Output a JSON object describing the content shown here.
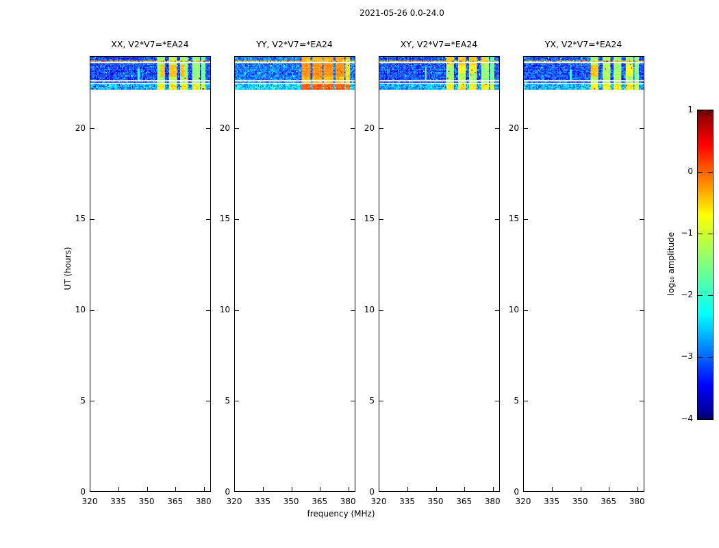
{
  "title": "2021-05-26 0.0-24.0",
  "colorbar": {
    "label": "log₁₀ amplitude",
    "tick_labels": [
      "1",
      "0",
      "−1",
      "−2",
      "−3",
      "−4"
    ],
    "colormap": "jet",
    "gradient_stops": [
      [
        "#00007f",
        0
      ],
      [
        "#0000ff",
        11
      ],
      [
        "#00ffff",
        34
      ],
      [
        "#7fff7f",
        50
      ],
      [
        "#ffff00",
        66
      ],
      [
        "#ff0000",
        89
      ],
      [
        "#7f0000",
        100
      ]
    ]
  },
  "chart_data": {
    "type": "heatmap",
    "title": "2021-05-26 0.0-24.0",
    "xlabel": "frequency (MHz)",
    "ylabel": "UT (hours)",
    "xlim_mhz": [
      320,
      383
    ],
    "ylim_hours": [
      0,
      24
    ],
    "xticks_mhz": [
      320,
      335,
      350,
      365,
      380
    ],
    "yticks_hours": [
      0,
      5,
      10,
      15,
      20
    ],
    "value_units": "log10 amplitude",
    "value_range": [
      -4,
      1
    ],
    "colorbar_ticks": [
      1,
      0,
      -1,
      -2,
      -3,
      -4
    ],
    "colormap": "jet",
    "data_time_range_hours": [
      22.1,
      24.0
    ],
    "scan_speck_row_hour": 23.705,
    "flagged_lines_hours": [
      23.64,
      22.63,
      22.49
    ],
    "bottom_bright_rows_hours": [
      22.1,
      22.42
    ],
    "panels": [
      {
        "polarization": "XX",
        "title": "XX, V2*V7=*EA24",
        "background_level": -3.1,
        "noise_spread": 1.1,
        "band_widen_mhz": 0,
        "bands": [
          {
            "f_mhz": [
              355.5,
              359.5
            ],
            "level": -1.35
          },
          {
            "f_mhz": [
              361.3,
              365.5
            ],
            "level": -1.25
          },
          {
            "f_mhz": [
              367.3,
              371.3
            ],
            "level": -1.35
          },
          {
            "f_mhz": [
              373.5,
              377.5
            ],
            "level": -1.4
          },
          {
            "f_mhz": [
              378.6,
              380.4
            ],
            "level": -1.55
          }
        ],
        "blobs": [
          {
            "f_mhz": [
              357,
              369.5
            ],
            "t_hours": [
              22.85,
              23.5
            ],
            "level": -0.55
          }
        ],
        "streaks": [
          {
            "f_mhz": 345.3,
            "t_hours": [
              22.6,
              23.25
            ],
            "level": -1.9
          }
        ]
      },
      {
        "polarization": "YY",
        "title": "YY, V2*V7=*EA24",
        "background_level": -2.85,
        "noise_spread": 1.0,
        "band_widen_mhz": 0.5,
        "bands": [
          {
            "f_mhz": [
              355.5,
              359.5
            ],
            "level": -0.55
          },
          {
            "f_mhz": [
              361.3,
              365.5
            ],
            "level": -0.5
          },
          {
            "f_mhz": [
              367.3,
              371.3
            ],
            "level": -0.55
          },
          {
            "f_mhz": [
              373.5,
              377.5
            ],
            "level": -0.55
          },
          {
            "f_mhz": [
              378.6,
              380.4
            ],
            "level": -0.7
          }
        ],
        "blobs": [
          {
            "f_mhz": [
              354.5,
              378
            ],
            "t_hours": [
              22.85,
              23.6
            ],
            "level": -0.3
          },
          {
            "f_mhz": [
              354.5,
              382
            ],
            "t_hours": [
              23.78,
              23.96
            ],
            "level": -0.55
          },
          {
            "f_mhz": [
              354.5,
              377
            ],
            "t_hours": [
              22.1,
              22.48
            ],
            "level": -0.65
          }
        ],
        "streaks": []
      },
      {
        "polarization": "XY",
        "title": "XY, V2*V7=*EA24",
        "background_level": -3.1,
        "noise_spread": 1.1,
        "band_widen_mhz": 0,
        "bands": [
          {
            "f_mhz": [
              355.5,
              359.5
            ],
            "level": -1.35
          },
          {
            "f_mhz": [
              361.3,
              365.5
            ],
            "level": -1.25
          },
          {
            "f_mhz": [
              367.3,
              371.3
            ],
            "level": -1.35
          },
          {
            "f_mhz": [
              373.5,
              377.5
            ],
            "level": -1.4
          },
          {
            "f_mhz": [
              378.6,
              380.4
            ],
            "level": -1.6
          }
        ],
        "blobs": [
          {
            "f_mhz": [
              355,
              376
            ],
            "t_hours": [
              23.5,
              23.95
            ],
            "level": -0.6
          },
          {
            "f_mhz": [
              360,
              372
            ],
            "t_hours": [
              23.0,
              23.5
            ],
            "level": -0.85
          }
        ],
        "streaks": [
          {
            "f_mhz": 344.5,
            "t_hours": [
              22.55,
              23.35
            ],
            "level": -1.5
          }
        ]
      },
      {
        "polarization": "YX",
        "title": "YX, V2*V7=*EA24",
        "background_level": -3.05,
        "noise_spread": 1.1,
        "band_widen_mhz": 0,
        "bands": [
          {
            "f_mhz": [
              355.5,
              359.5
            ],
            "level": -1.35
          },
          {
            "f_mhz": [
              361.3,
              365.5
            ],
            "level": -1.3
          },
          {
            "f_mhz": [
              367.3,
              371.3
            ],
            "level": -1.35
          },
          {
            "f_mhz": [
              373.5,
              377.5
            ],
            "level": -1.3
          },
          {
            "f_mhz": [
              378.6,
              380.4
            ],
            "level": -1.5
          }
        ],
        "blobs": [
          {
            "f_mhz": [
              355,
              360
            ],
            "t_hours": [
              22.85,
              23.45
            ],
            "level": -0.55
          },
          {
            "f_mhz": [
              373,
              378
            ],
            "t_hours": [
              22.9,
              23.5
            ],
            "level": -0.95
          }
        ],
        "streaks": [
          {
            "f_mhz": 344.9,
            "t_hours": [
              22.6,
              23.2
            ],
            "level": -2.0
          }
        ]
      }
    ]
  }
}
